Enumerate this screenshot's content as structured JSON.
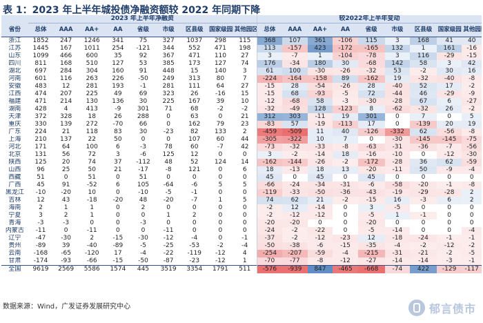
{
  "title": "表 1：2023 年上半年城投债净融资额较 2022 年同期下降",
  "group_left": "2023 年上半年净融资",
  "group_right": "较2022年上半年变动",
  "columns": [
    "省份",
    "总体",
    "AAA",
    "AA+",
    "AA",
    "省级",
    "市级",
    "区县级",
    "国家级园区",
    "其他园区",
    "总体",
    "AAA",
    "AA+",
    "AA",
    "省级",
    "市级",
    "区县级",
    "国家级园区",
    "其他园区"
  ],
  "rows": [
    [
      "浙江",
      "1852",
      "247",
      "1246",
      "341",
      "75",
      "327",
      "1037",
      "298",
      "115",
      "368",
      "107",
      "361",
      "-106",
      "115",
      "3",
      "168",
      "41",
      "40"
    ],
    [
      "江苏",
      "1445",
      "167",
      "1011",
      "254",
      "-121",
      "344",
      "552",
      "471",
      "198",
      "113",
      "-157",
      "423",
      "-172",
      "-165",
      "132",
      "1",
      "161",
      "-16"
    ],
    [
      "山东",
      "1099",
      "466",
      "600",
      "35",
      "92",
      "367",
      "471",
      "110",
      "27",
      "3",
      "-7",
      "1",
      "-104",
      "-78",
      "3",
      "116",
      "-29",
      "-15"
    ],
    [
      "四川",
      "811",
      "168",
      "510",
      "127",
      "53",
      "385",
      "173",
      "127",
      "74",
      "176",
      "-34",
      "180",
      "30",
      "-68",
      "142",
      "58",
      "3",
      "42"
    ],
    [
      "湖北",
      "697",
      "284",
      "304",
      "160",
      "91",
      "448",
      "15",
      "140",
      "3",
      "61",
      "100",
      "-30",
      "-26",
      "-32",
      "53",
      "-2",
      "30",
      "16"
    ],
    [
      "河南",
      "601",
      "116",
      "263",
      "226",
      "-50",
      "249",
      "313",
      "80",
      "7",
      "-224",
      "-164",
      "-158",
      "89",
      "-162",
      "19",
      "-32",
      "-40",
      "-8"
    ],
    [
      "安徽",
      "483",
      "12",
      "281",
      "193",
      "-1",
      "281",
      "111",
      "64",
      "27",
      "-15",
      "28",
      "-54",
      "-26",
      "28",
      "-40",
      "52",
      "17",
      "-2"
    ],
    [
      "江西",
      "474",
      "207",
      "225",
      "49",
      "69",
      "323",
      "26",
      "-16",
      "15",
      "-15",
      "68",
      "-93",
      "-5",
      "72",
      "-44",
      "46",
      "-29",
      "-9"
    ],
    [
      "福建",
      "471",
      "214",
      "130",
      "136",
      "30",
      "225",
      "167",
      "39",
      "10",
      "-12",
      "-68",
      "58",
      "-3",
      "-30",
      "-28",
      "67",
      "6",
      "-27"
    ],
    [
      "湖南",
      "428",
      "4",
      "413",
      "-9",
      "301",
      "71",
      "68",
      "-2",
      "-2",
      "-32",
      "-49",
      "128",
      "-123",
      "8",
      "-62",
      "-32",
      "26",
      "-2"
    ],
    [
      "天津",
      "372",
      "328",
      "18",
      "26",
      "288",
      "0",
      "63",
      "0",
      "21",
      "312",
      "303",
      "-11",
      "19",
      "301",
      "0",
      "7",
      "0",
      "5"
    ],
    [
      "重庆",
      "330",
      "139",
      "272",
      "-70",
      "66",
      "0",
      "162",
      "79",
      "23",
      "-83",
      "57",
      "-19",
      "-113",
      "17",
      "0",
      "-139",
      "20",
      "19"
    ],
    [
      "广东",
      "224",
      "21",
      "118",
      "83",
      "30",
      "-23",
      "82",
      "133",
      "2",
      "-459",
      "-509",
      "11",
      "40",
      "-126",
      "-332",
      "62",
      "-56",
      "-8"
    ],
    [
      "上海",
      "210",
      "137",
      "22",
      "50",
      "0",
      "0",
      "107",
      "60",
      "44",
      "-305",
      "-322",
      "10",
      "7",
      "0",
      "-30",
      "-145",
      "-145",
      "-75"
    ],
    [
      "河北",
      "171",
      "64",
      "100",
      "6",
      "-3",
      "78",
      "60",
      "-7",
      "42",
      "-73",
      "-32",
      "-33",
      "-8",
      "-63",
      "-31",
      "-36",
      "-7",
      "-56"
    ],
    [
      "北京",
      "131",
      "56",
      "72",
      "3",
      "-6",
      "125",
      "12",
      "0",
      "0",
      "3",
      "-2",
      "-14",
      "18",
      "-16",
      "-10",
      "0",
      "-12",
      "-30"
    ],
    [
      "陕西",
      "125",
      "20",
      "74",
      "37",
      "-112",
      "48",
      "52",
      "124",
      "14",
      "-162",
      "-144",
      "-26",
      "-2",
      "-172",
      "-28",
      "36",
      "62",
      "-59"
    ],
    [
      "山西",
      "96",
      "25",
      "50",
      "21",
      "-17",
      "-8",
      "121",
      "0",
      "6",
      "18",
      "-13",
      "18",
      "13",
      "-20",
      "-11",
      "50",
      "-9",
      "-4"
    ],
    [
      "西藏",
      "51",
      "0",
      "51",
      "0",
      "51",
      "0",
      "0",
      "0",
      "0",
      "45",
      "0",
      "45",
      "0",
      "45",
      "0",
      "0",
      "0",
      "0"
    ],
    [
      "广西",
      "45",
      "91",
      "-52",
      "6",
      "105",
      "-64",
      "-6",
      "5",
      "5",
      "-66",
      "-24",
      "-34",
      "-31",
      "-6",
      "-58",
      "-20",
      "-1",
      "-8"
    ],
    [
      "黑龙江",
      "-10",
      "-20",
      "10",
      "0",
      "-10",
      "-5",
      "-1",
      "0",
      "0",
      "-119",
      "-33",
      "-50",
      "-36",
      "-43",
      "-19",
      "-29",
      "-28",
      "2"
    ],
    [
      "吉林",
      "12",
      "43",
      "-18",
      "-20",
      "48",
      "-20",
      "-7",
      "1",
      "5",
      "74",
      "62",
      "21",
      "-2",
      "-15",
      "16",
      "-3",
      "6",
      "2"
    ],
    [
      "海南",
      "2",
      "1",
      "1",
      "0",
      "2",
      "0",
      "0",
      "0",
      "0",
      "-2",
      "12",
      "-14",
      "0",
      "3",
      "-5",
      "0",
      "0",
      "0"
    ],
    [
      "宁夏",
      "3",
      "2",
      "1",
      "0",
      "0",
      "1",
      "2",
      "0",
      "0",
      "-2",
      "-12",
      "-12",
      "0",
      "-5",
      "1",
      "-1",
      "0",
      "0"
    ],
    [
      "青海",
      "-3",
      "-3",
      "0",
      "0",
      "-3",
      "0",
      "0",
      "0",
      "0",
      "-20",
      "-20",
      "0",
      "0",
      "-20",
      "0",
      "0",
      "0",
      "0"
    ],
    [
      "内蒙古",
      "-11",
      "0",
      "-11",
      "0",
      "0",
      "-11",
      "0",
      "0",
      "0",
      "-24",
      "-2",
      "-22",
      "0",
      "-5",
      "-14",
      "0",
      "0",
      "-4"
    ],
    [
      "辽宁",
      "-47",
      "-30",
      "2",
      "-15",
      "-30",
      "-12",
      "-4",
      "0",
      "-1",
      "-37",
      "-2",
      "-12",
      "-23",
      "12",
      "-18",
      "-24",
      "-1",
      "-1"
    ],
    [
      "贵州",
      "-89",
      "39",
      "-40",
      "-89",
      "-5",
      "-25",
      "-53",
      "-2",
      "-4",
      "-50",
      "-38",
      "-6",
      "-15",
      "-35",
      "-4",
      "-2",
      "-12",
      "-2"
    ],
    [
      "云南",
      "-168",
      "-65",
      "-120",
      "17",
      "-4",
      "-22",
      "-119",
      "-12",
      "4",
      "-254",
      "-207",
      "-59",
      "-4",
      "-215",
      "-31",
      "-21",
      "-2",
      "-5"
    ],
    [
      "甘肃",
      "-174",
      "-93",
      "-66",
      "-15",
      "-50",
      "-87",
      "-23",
      "-12",
      "1",
      "-70",
      "-77",
      "-8",
      "-12",
      "-27",
      "-14",
      "-14",
      "-3",
      "-1"
    ]
  ],
  "total": [
    "全国",
    "9619",
    "2569",
    "5586",
    "1574",
    "445",
    "3519",
    "3354",
    "1791",
    "511",
    "-576",
    "-939",
    "847",
    "-465",
    "-668",
    "-74",
    "422",
    "-129",
    "-117"
  ],
  "source": "数据来源：Wind，广发证券发展研究中心",
  "watermark": "郁言债市",
  "colors": {
    "title": "#1f3d6b",
    "header_bg": "#dbe4f3",
    "positive": "#4f81bd",
    "negative": "#d9534f"
  }
}
